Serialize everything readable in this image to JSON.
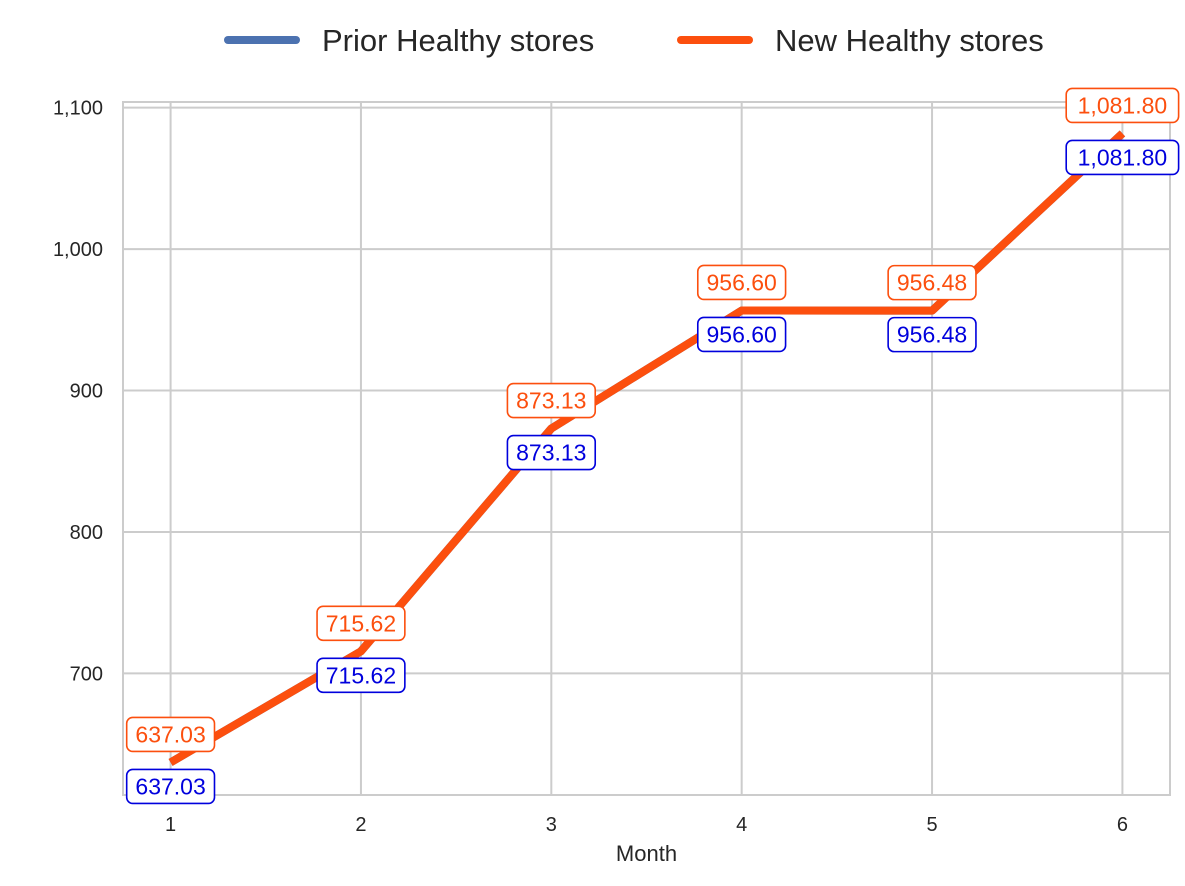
{
  "chart_data": {
    "type": "line",
    "title": "",
    "xlabel": "Month",
    "ylabel": "",
    "x": [
      1,
      2,
      3,
      4,
      5,
      6
    ],
    "x_tick_labels": [
      "1",
      "2",
      "3",
      "4",
      "5",
      "6"
    ],
    "xlim": [
      0.75,
      6.25
    ],
    "ylim": [
      614,
      1104
    ],
    "y_ticks": [
      700,
      800,
      900,
      1000,
      1100
    ],
    "y_tick_labels": [
      "700",
      "800",
      "900",
      "1,000",
      "1,100"
    ],
    "grid": true,
    "legend": {
      "placement": "top-center, above plot",
      "entries": [
        "Prior Healthy stores",
        "New Healthy stores"
      ]
    },
    "series": [
      {
        "name": "Prior Healthy stores",
        "color": "#4c72b0",
        "label_color": "#0000dd",
        "values": [
          637.03,
          715.62,
          873.13,
          956.6,
          956.48,
          1081.8
        ],
        "data_labels": [
          "637.03",
          "715.62",
          "873.13",
          "956.60",
          "956.48",
          "1,081.80"
        ]
      },
      {
        "name": "New Healthy stores",
        "color": "#fc4f0e",
        "label_color": "#fc4f0e",
        "values": [
          637.03,
          715.62,
          873.13,
          956.6,
          956.48,
          1081.8
        ],
        "data_labels": [
          "637.03",
          "715.62",
          "873.13",
          "956.60",
          "956.48",
          "1,081.80"
        ]
      }
    ]
  }
}
